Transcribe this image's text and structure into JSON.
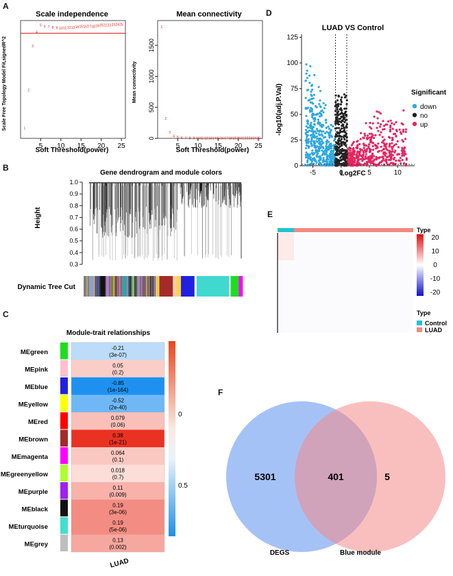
{
  "panel_labels": {
    "a": "A",
    "b": "B",
    "c": "C",
    "d": "D",
    "e": "E",
    "f": "F"
  },
  "chart_data": [
    {
      "id": "scale_independence",
      "type": "scatter",
      "title": "Scale independence",
      "xlabel": "Soft Threshold(power)",
      "ylabel": "Scale Free Topology Model Fit,signedR^2",
      "xlim": [
        0,
        26
      ],
      "ylim": [
        0.02,
        0.95
      ],
      "xticks": [
        5,
        10,
        15,
        20,
        25
      ],
      "hline": 0.85,
      "point_color": "#e31a1c",
      "hline_color": "#e31a1c",
      "points": [
        {
          "x": 1,
          "y": 0.1
        },
        {
          "x": 2,
          "y": 0.4
        },
        {
          "x": 3,
          "y": 0.75
        },
        {
          "x": 4,
          "y": 0.86
        },
        {
          "x": 5,
          "y": 0.915
        },
        {
          "x": 6,
          "y": 0.905
        },
        {
          "x": 7,
          "y": 0.9
        },
        {
          "x": 8,
          "y": 0.895
        },
        {
          "x": 9,
          "y": 0.893
        },
        {
          "x": 10,
          "y": 0.89
        },
        {
          "x": 11,
          "y": 0.892
        },
        {
          "x": 12,
          "y": 0.895
        },
        {
          "x": 13,
          "y": 0.897
        },
        {
          "x": 14,
          "y": 0.9
        },
        {
          "x": 15,
          "y": 0.905
        },
        {
          "x": 16,
          "y": 0.905
        },
        {
          "x": 17,
          "y": 0.908
        },
        {
          "x": 18,
          "y": 0.905
        },
        {
          "x": 19,
          "y": 0.91
        },
        {
          "x": 20,
          "y": 0.915
        },
        {
          "x": 21,
          "y": 0.915
        },
        {
          "x": 22,
          "y": 0.915
        },
        {
          "x": 23,
          "y": 0.918
        },
        {
          "x": 24,
          "y": 0.92
        },
        {
          "x": 25,
          "y": 0.92
        }
      ]
    },
    {
      "id": "mean_connectivity",
      "type": "scatter",
      "title": "Mean connectivity",
      "xlabel": "Soft Threshold(power)",
      "ylabel": "Mean connectivity",
      "xlim": [
        0,
        26
      ],
      "ylim": [
        0,
        1900
      ],
      "xticks": [
        5,
        10,
        15,
        20,
        25
      ],
      "yticks": [
        0,
        500,
        1000,
        1500
      ],
      "point_color": "#e31a1c",
      "points": [
        {
          "x": 1,
          "y": 1800
        },
        {
          "x": 2,
          "y": 320
        },
        {
          "x": 3,
          "y": 100
        },
        {
          "x": 4,
          "y": 40
        },
        {
          "x": 5,
          "y": 20
        },
        {
          "x": 6,
          "y": 12
        },
        {
          "x": 7,
          "y": 8
        },
        {
          "x": 8,
          "y": 6
        },
        {
          "x": 9,
          "y": 5
        },
        {
          "x": 10,
          "y": 4
        },
        {
          "x": 11,
          "y": 4
        },
        {
          "x": 12,
          "y": 3
        },
        {
          "x": 13,
          "y": 3
        },
        {
          "x": 14,
          "y": 3
        },
        {
          "x": 15,
          "y": 3
        },
        {
          "x": 16,
          "y": 3
        },
        {
          "x": 17,
          "y": 3
        },
        {
          "x": 18,
          "y": 3
        },
        {
          "x": 19,
          "y": 3
        },
        {
          "x": 20,
          "y": 3
        },
        {
          "x": 21,
          "y": 3
        },
        {
          "x": 22,
          "y": 3
        },
        {
          "x": 23,
          "y": 3
        },
        {
          "x": 24,
          "y": 3
        },
        {
          "x": 25,
          "y": 3
        }
      ]
    },
    {
      "id": "volcano",
      "type": "scatter",
      "title": "LUAD VS Control",
      "xlabel": "Log2FC",
      "ylabel": "-log10(adj.P.Val)",
      "xlim": [
        -7,
        13
      ],
      "ylim": [
        0,
        128
      ],
      "xticks": [
        -5,
        0,
        5,
        10
      ],
      "yticks": [
        0,
        25,
        50,
        75,
        100,
        125
      ],
      "vlines": [
        -1,
        1
      ],
      "hline_y": 1.3,
      "legend_title": "Significant",
      "legend": [
        {
          "name": "down",
          "color": "#2ea7e0"
        },
        {
          "name": "no",
          "color": "#222222"
        },
        {
          "name": "up",
          "color": "#e8245f"
        }
      ]
    },
    {
      "id": "dendrogram",
      "type": "dendrogram",
      "title": "Gene dendrogram and module colors",
      "ylabel": "Height",
      "yticks": [
        0.3,
        0.4,
        0.5,
        0.6,
        0.7,
        0.8,
        0.9,
        1.0
      ],
      "ylim": [
        0.3,
        1.0
      ],
      "colorbar_label": "Dynamic Tree Cut",
      "module_segments": [
        {
          "color": "#7f7f7f",
          "w": 1
        },
        {
          "color": "#8ea0c7",
          "w": 1
        },
        {
          "color": "#3b5aa8",
          "w": 1
        },
        {
          "color": "#111111",
          "w": 1
        },
        {
          "color": "#b27cc0",
          "w": 1
        },
        {
          "color": "#6f8a3a",
          "w": 1
        },
        {
          "color": "#9a7fb1",
          "w": 1
        },
        {
          "color": "#3d9e9e",
          "w": 1
        },
        {
          "color": "#8d8fd8",
          "w": 1
        },
        {
          "color": "#9bc06d",
          "w": 1
        },
        {
          "color": "#b37eb9",
          "w": 1
        },
        {
          "color": "#6d6d6d",
          "w": 1
        },
        {
          "color": "#0a1d52",
          "w": 1
        },
        {
          "color": "#e8d44d",
          "w": 1
        },
        {
          "color": "#a52a2a",
          "w": 2.5
        },
        {
          "color": "#eed3a0",
          "w": 0.7
        },
        {
          "color": "#ffd24a",
          "w": 0.8
        },
        {
          "color": "#2020e0",
          "w": 2.5
        },
        {
          "color": "#ffffff",
          "w": 0.4
        },
        {
          "color": "#40d8cf",
          "w": 6
        },
        {
          "color": "#e8e8e8",
          "w": 0.3
        },
        {
          "color": "#1fdc1f",
          "w": 1.5
        },
        {
          "color": "#ff00ff",
          "w": 0.7
        }
      ]
    },
    {
      "id": "module_trait",
      "type": "heatmap",
      "title": "Module-trait relationships",
      "column": "LUAD",
      "colorbar_ticks": [
        "0",
        "0.5"
      ],
      "rows": [
        {
          "module": "MEgreen",
          "color": "#1fdc1f",
          "value": -0.21,
          "r": "-0.21",
          "p": "(3e-07)"
        },
        {
          "module": "MEpink",
          "color": "#ffc0cb",
          "value": 0.05,
          "r": "0.05",
          "p": "(0.2)"
        },
        {
          "module": "MEblue",
          "color": "#2020e0",
          "value": -0.85,
          "r": "-0.85",
          "p": "(1e-164)"
        },
        {
          "module": "MEyellow",
          "color": "#ffff00",
          "value": -0.52,
          "r": "-0.52",
          "p": "(2e-40)"
        },
        {
          "module": "MEred",
          "color": "#ff0000",
          "value": 0.079,
          "r": "0.079",
          "p": "(0.06)"
        },
        {
          "module": "MEbrown",
          "color": "#a52a2a",
          "value": 0.38,
          "r": "0.38",
          "p": "(1e-21)"
        },
        {
          "module": "MEmagenta",
          "color": "#ff00ff",
          "value": 0.064,
          "r": "0.064",
          "p": "(0.1)"
        },
        {
          "module": "MEgreenyellow",
          "color": "#adff2f",
          "value": 0.018,
          "r": "0.018",
          "p": "(0.7)"
        },
        {
          "module": "MEpurple",
          "color": "#a020f0",
          "value": 0.11,
          "r": "0.11",
          "p": "(0.009)"
        },
        {
          "module": "MEblack",
          "color": "#111111",
          "value": 0.19,
          "r": "0.19",
          "p": "(3e-06)"
        },
        {
          "module": "MEturquoise",
          "color": "#40e0d0",
          "value": 0.19,
          "r": "0.19",
          "p": "(5e-06)"
        },
        {
          "module": "MEgrey",
          "color": "#bebebe",
          "value": 0.13,
          "r": "0.13",
          "p": "(0.002)"
        }
      ]
    },
    {
      "id": "expression_heatmap",
      "type": "heatmap",
      "annotation_title": "Type",
      "colorbar_ticks": [
        20,
        10,
        0,
        -10,
        -20
      ],
      "legend_title": "Type",
      "legend": [
        {
          "name": "Control",
          "color": "#22c3cf"
        },
        {
          "name": "LUAD",
          "color": "#f28a80"
        }
      ]
    },
    {
      "id": "venn",
      "type": "venn",
      "sets": [
        {
          "name": "DEGS",
          "only": 5301,
          "color": "#5b8ff0"
        },
        {
          "name": "Blue module",
          "only": 5,
          "color": "#f48a8a"
        }
      ],
      "intersection": 401
    }
  ]
}
